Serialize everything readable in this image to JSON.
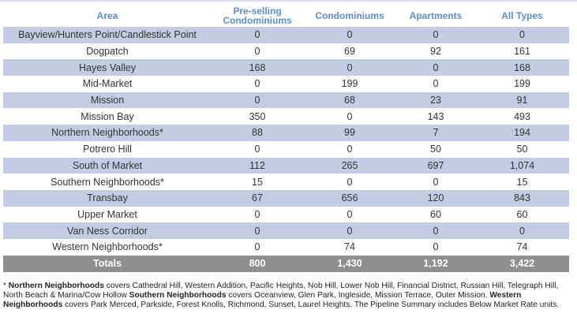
{
  "table": {
    "headers": {
      "area": "Area",
      "preselling_line1": "Pre-selling",
      "preselling_line2": "Condominiums",
      "condominiums": "Condominiums",
      "apartments": "Apartments",
      "all_types": "All Types"
    },
    "rows": [
      {
        "area": "Bayview/Hunters Point/Candlestick Point",
        "pre": "0",
        "con": "0",
        "apt": "0",
        "all": "0"
      },
      {
        "area": "Dogpatch",
        "pre": "0",
        "con": "69",
        "apt": "92",
        "all": "161"
      },
      {
        "area": "Hayes Valley",
        "pre": "168",
        "con": "0",
        "apt": "0",
        "all": "168"
      },
      {
        "area": "Mid-Market",
        "pre": "0",
        "con": "199",
        "apt": "0",
        "all": "199"
      },
      {
        "area": "Mission",
        "pre": "0",
        "con": "68",
        "apt": "23",
        "all": "91"
      },
      {
        "area": "Mission Bay",
        "pre": "350",
        "con": "0",
        "apt": "143",
        "all": "493"
      },
      {
        "area": "Northern Neighborhoods*",
        "pre": "88",
        "con": "99",
        "apt": "7",
        "all": "194"
      },
      {
        "area": "Potrero Hill",
        "pre": "0",
        "con": "0",
        "apt": "50",
        "all": "50"
      },
      {
        "area": "South of Market",
        "pre": "112",
        "con": "265",
        "apt": "697",
        "all": "1,074"
      },
      {
        "area": "Southern Neighborhoods*",
        "pre": "15",
        "con": "0",
        "apt": "0",
        "all": "15"
      },
      {
        "area": "Transbay",
        "pre": "67",
        "con": "656",
        "apt": "120",
        "all": "843"
      },
      {
        "area": "Upper Market",
        "pre": "0",
        "con": "0",
        "apt": "60",
        "all": "60"
      },
      {
        "area": "Van Ness Corridor",
        "pre": "0",
        "con": "0",
        "apt": "0",
        "all": "0"
      },
      {
        "area": "Western Neighborhoods*",
        "pre": "0",
        "con": "74",
        "apt": "0",
        "all": "74"
      }
    ],
    "totals": {
      "label": "Totals",
      "pre": "800",
      "con": "1,430",
      "apt": "1,192",
      "all": "3,422"
    }
  },
  "footnote": {
    "prefix": "* ",
    "northern_label": "Northern Neighborhoods",
    "northern_text": " covers Cathedral Hill, Western Addition, Pacific Heights, Nob Hill, Lower Nob Hill, Financial District, Russian Hill, Telegraph Hill, North Beach & Marina/Cow Hollow ",
    "southern_label": "Southern Neighborhoods",
    "southern_text": " covers Oceanview, Glen Park, Ingleside, Mission Terrace, Outer Mission. ",
    "western_label": "Western Neighborhoods",
    "western_text": " covers Park Merced, Parkside, Forest Knolls, Richmond, Sunset, Laurel Heights. The Pipeline Summary includes Below Market Rate units."
  },
  "colors": {
    "header_text": "#5b8fc8",
    "row_stripe": "#c3cce2",
    "totals_bg": "#8f8f91"
  }
}
